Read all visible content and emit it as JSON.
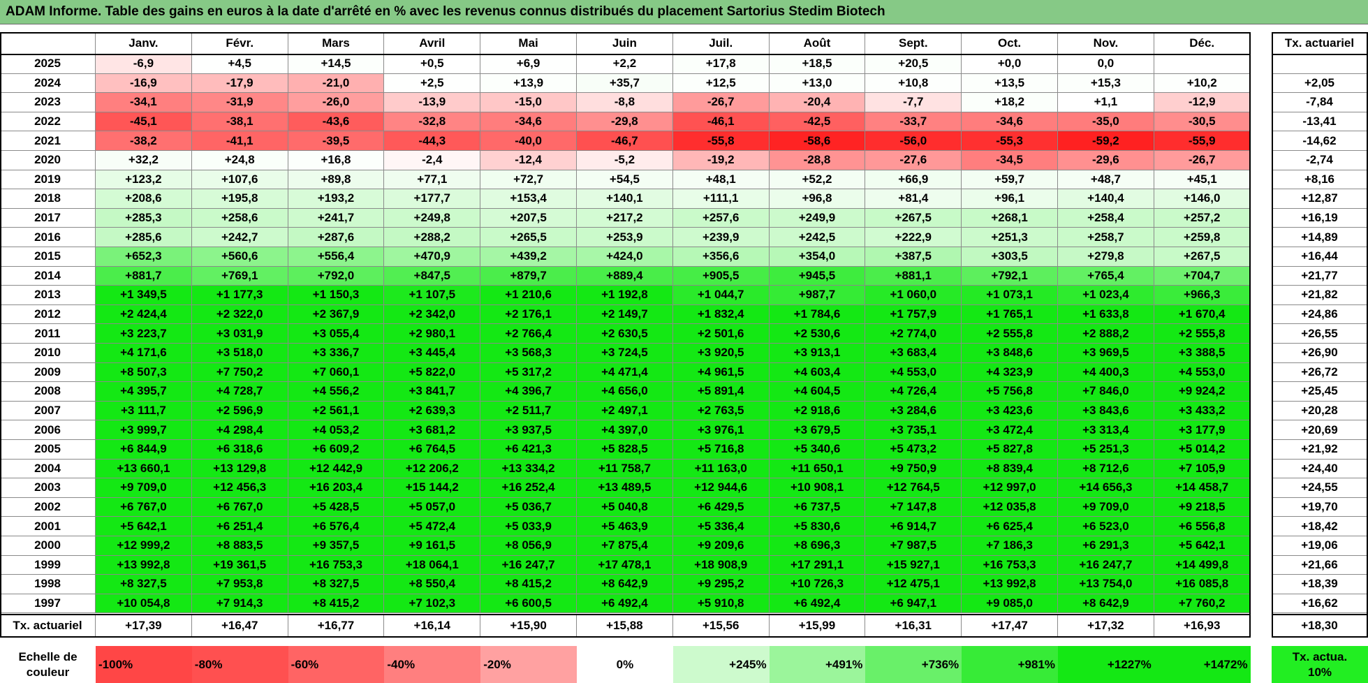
{
  "title": "ADAM Informe. Table des gains en euros à la date d'arrêté en % avec les revenus connus distribués du placement Sartorius Stedim Biotech",
  "header": {
    "months": [
      "Janv.",
      "Févr.",
      "Mars",
      "Avril",
      "Mai",
      "Juin",
      "Juil.",
      "Août",
      "Sept.",
      "Oct.",
      "Nov.",
      "Déc."
    ],
    "rate": "Tx. actuariel"
  },
  "rows": [
    {
      "year": "2025",
      "values": [
        "-6,9",
        "+4,5",
        "+14,5",
        "+0,5",
        "+6,9",
        "+2,2",
        "+17,8",
        "+18,5",
        "+20,5",
        "+0,0",
        "0,0",
        null
      ],
      "rate": null
    },
    {
      "year": "2024",
      "values": [
        "-16,9",
        "-17,9",
        "-21,0",
        "+2,5",
        "+13,9",
        "+35,7",
        "+12,5",
        "+13,0",
        "+10,8",
        "+13,5",
        "+15,3",
        "+10,2"
      ],
      "rate": "+2,05"
    },
    {
      "year": "2023",
      "values": [
        "-34,1",
        "-31,9",
        "-26,0",
        "-13,9",
        "-15,0",
        "-8,8",
        "-26,7",
        "-20,4",
        "-7,7",
        "+18,2",
        "+1,1",
        "-12,9"
      ],
      "rate": "-7,84"
    },
    {
      "year": "2022",
      "values": [
        "-45,1",
        "-38,1",
        "-43,6",
        "-32,8",
        "-34,6",
        "-29,8",
        "-46,1",
        "-42,5",
        "-33,7",
        "-34,6",
        "-35,0",
        "-30,5"
      ],
      "rate": "-13,41"
    },
    {
      "year": "2021",
      "values": [
        "-38,2",
        "-41,1",
        "-39,5",
        "-44,3",
        "-40,0",
        "-46,7",
        "-55,8",
        "-58,6",
        "-56,0",
        "-55,3",
        "-59,2",
        "-55,9"
      ],
      "rate": "-14,62"
    },
    {
      "year": "2020",
      "values": [
        "+32,2",
        "+24,8",
        "+16,8",
        "-2,4",
        "-12,4",
        "-5,2",
        "-19,2",
        "-28,8",
        "-27,6",
        "-34,5",
        "-29,6",
        "-26,7"
      ],
      "rate": "-2,74"
    },
    {
      "year": "2019",
      "values": [
        "+123,2",
        "+107,6",
        "+89,8",
        "+77,1",
        "+72,7",
        "+54,5",
        "+48,1",
        "+52,2",
        "+66,9",
        "+59,7",
        "+48,7",
        "+45,1"
      ],
      "rate": "+8,16"
    },
    {
      "year": "2018",
      "values": [
        "+208,6",
        "+195,8",
        "+193,2",
        "+177,7",
        "+153,4",
        "+140,1",
        "+111,1",
        "+96,8",
        "+81,4",
        "+96,1",
        "+140,4",
        "+146,0"
      ],
      "rate": "+12,87"
    },
    {
      "year": "2017",
      "values": [
        "+285,3",
        "+258,6",
        "+241,7",
        "+249,8",
        "+207,5",
        "+217,2",
        "+257,6",
        "+249,9",
        "+267,5",
        "+268,1",
        "+258,4",
        "+257,2"
      ],
      "rate": "+16,19"
    },
    {
      "year": "2016",
      "values": [
        "+285,6",
        "+242,7",
        "+287,6",
        "+288,2",
        "+265,5",
        "+253,9",
        "+239,9",
        "+242,5",
        "+222,9",
        "+251,3",
        "+258,7",
        "+259,8"
      ],
      "rate": "+14,89"
    },
    {
      "year": "2015",
      "values": [
        "+652,3",
        "+560,6",
        "+556,4",
        "+470,9",
        "+439,2",
        "+424,0",
        "+356,6",
        "+354,0",
        "+387,5",
        "+303,5",
        "+279,8",
        "+267,5"
      ],
      "rate": "+16,44"
    },
    {
      "year": "2014",
      "values": [
        "+881,7",
        "+769,1",
        "+792,0",
        "+847,5",
        "+879,7",
        "+889,4",
        "+905,5",
        "+945,5",
        "+881,1",
        "+792,1",
        "+765,4",
        "+704,7"
      ],
      "rate": "+21,77"
    },
    {
      "year": "2013",
      "values": [
        "+1 349,5",
        "+1 177,3",
        "+1 150,3",
        "+1 107,5",
        "+1 210,6",
        "+1 192,8",
        "+1 044,7",
        "+987,7",
        "+1 060,0",
        "+1 073,1",
        "+1 023,4",
        "+966,3"
      ],
      "rate": "+21,82"
    },
    {
      "year": "2012",
      "values": [
        "+2 424,4",
        "+2 322,0",
        "+2 367,9",
        "+2 342,0",
        "+2 176,1",
        "+2 149,7",
        "+1 832,4",
        "+1 784,6",
        "+1 757,9",
        "+1 765,1",
        "+1 633,8",
        "+1 670,4"
      ],
      "rate": "+24,86"
    },
    {
      "year": "2011",
      "values": [
        "+3 223,7",
        "+3 031,9",
        "+3 055,4",
        "+2 980,1",
        "+2 766,4",
        "+2 630,5",
        "+2 501,6",
        "+2 530,6",
        "+2 774,0",
        "+2 555,8",
        "+2 888,2",
        "+2 555,8"
      ],
      "rate": "+26,55"
    },
    {
      "year": "2010",
      "values": [
        "+4 171,6",
        "+3 518,0",
        "+3 336,7",
        "+3 445,4",
        "+3 568,3",
        "+3 724,5",
        "+3 920,5",
        "+3 913,1",
        "+3 683,4",
        "+3 848,6",
        "+3 969,5",
        "+3 388,5"
      ],
      "rate": "+26,90"
    },
    {
      "year": "2009",
      "values": [
        "+8 507,3",
        "+7 750,2",
        "+7 060,1",
        "+5 822,0",
        "+5 317,2",
        "+4 471,4",
        "+4 961,5",
        "+4 603,4",
        "+4 553,0",
        "+4 323,9",
        "+4 400,3",
        "+4 553,0"
      ],
      "rate": "+26,72"
    },
    {
      "year": "2008",
      "values": [
        "+4 395,7",
        "+4 728,7",
        "+4 556,2",
        "+3 841,7",
        "+4 396,7",
        "+4 656,0",
        "+5 891,4",
        "+4 604,5",
        "+4 726,4",
        "+5 756,8",
        "+7 846,0",
        "+9 924,2"
      ],
      "rate": "+25,45"
    },
    {
      "year": "2007",
      "values": [
        "+3 111,7",
        "+2 596,9",
        "+2 561,1",
        "+2 639,3",
        "+2 511,7",
        "+2 497,1",
        "+2 763,5",
        "+2 918,6",
        "+3 284,6",
        "+3 423,6",
        "+3 843,6",
        "+3 433,2"
      ],
      "rate": "+20,28"
    },
    {
      "year": "2006",
      "values": [
        "+3 999,7",
        "+4 298,4",
        "+4 053,2",
        "+3 681,2",
        "+3 937,5",
        "+4 397,0",
        "+3 976,1",
        "+3 679,5",
        "+3 735,1",
        "+3 472,4",
        "+3 313,4",
        "+3 177,9"
      ],
      "rate": "+20,69"
    },
    {
      "year": "2005",
      "values": [
        "+6 844,9",
        "+6 318,6",
        "+6 609,2",
        "+6 764,5",
        "+6 421,3",
        "+5 828,5",
        "+5 716,8",
        "+5 340,6",
        "+5 473,2",
        "+5 827,8",
        "+5 251,3",
        "+5 014,2"
      ],
      "rate": "+21,92"
    },
    {
      "year": "2004",
      "values": [
        "+13 660,1",
        "+13 129,8",
        "+12 442,9",
        "+12 206,2",
        "+13 334,2",
        "+11 758,7",
        "+11 163,0",
        "+11 650,1",
        "+9 750,9",
        "+8 839,4",
        "+8 712,6",
        "+7 105,9"
      ],
      "rate": "+24,40"
    },
    {
      "year": "2003",
      "values": [
        "+9 709,0",
        "+12 456,3",
        "+16 203,4",
        "+15 144,2",
        "+16 252,4",
        "+13 489,5",
        "+12 944,6",
        "+10 908,1",
        "+12 764,5",
        "+12 997,0",
        "+14 656,3",
        "+14 458,7"
      ],
      "rate": "+24,55"
    },
    {
      "year": "2002",
      "values": [
        "+6 767,0",
        "+6 767,0",
        "+5 428,5",
        "+5 057,0",
        "+5 036,7",
        "+5 040,8",
        "+6 429,5",
        "+6 737,5",
        "+7 147,8",
        "+12 035,8",
        "+9 709,0",
        "+9 218,5"
      ],
      "rate": "+19,70"
    },
    {
      "year": "2001",
      "values": [
        "+5 642,1",
        "+6 251,4",
        "+6 576,4",
        "+5 472,4",
        "+5 033,9",
        "+5 463,9",
        "+5 336,4",
        "+5 830,6",
        "+6 914,7",
        "+6 625,4",
        "+6 523,0",
        "+6 556,8"
      ],
      "rate": "+18,42"
    },
    {
      "year": "2000",
      "values": [
        "+12 999,2",
        "+8 883,5",
        "+9 357,5",
        "+9 161,5",
        "+8 056,9",
        "+7 875,4",
        "+9 209,6",
        "+8 696,3",
        "+7 987,5",
        "+7 186,3",
        "+6 291,3",
        "+5 642,1"
      ],
      "rate": "+19,06"
    },
    {
      "year": "1999",
      "values": [
        "+13 992,8",
        "+19 361,5",
        "+16 753,3",
        "+18 064,1",
        "+16 247,7",
        "+17 478,1",
        "+18 908,9",
        "+17 291,1",
        "+15 927,1",
        "+16 753,3",
        "+16 247,7",
        "+14 499,8"
      ],
      "rate": "+21,66"
    },
    {
      "year": "1998",
      "values": [
        "+8 327,5",
        "+7 953,8",
        "+8 327,5",
        "+8 550,4",
        "+8 415,2",
        "+8 642,9",
        "+9 295,2",
        "+10 726,3",
        "+12 475,1",
        "+13 992,8",
        "+13 754,0",
        "+16 085,8"
      ],
      "rate": "+18,39"
    },
    {
      "year": "1997",
      "values": [
        "+10 054,8",
        "+7 914,3",
        "+8 415,2",
        "+7 102,3",
        "+6 600,5",
        "+6 492,4",
        "+5 910,8",
        "+6 492,4",
        "+6 947,1",
        "+9 085,0",
        "+8 642,9",
        "+7 760,2"
      ],
      "rate": "+16,62"
    }
  ],
  "footer": {
    "label": "Tx. actuariel",
    "values": [
      "+17,39",
      "+16,47",
      "+16,77",
      "+16,14",
      "+15,90",
      "+15,88",
      "+15,56",
      "+15,99",
      "+16,31",
      "+17,47",
      "+17,32",
      "+16,93"
    ],
    "rate": "+18,30"
  },
  "legend": {
    "label": "Echelle de couleur",
    "steps": [
      "-100%",
      "-80%",
      "-60%",
      "-40%",
      "-20%",
      "0%",
      "+245%",
      "+491%",
      "+736%",
      "+981%",
      "+1227%",
      "+1472%"
    ],
    "rate_label": "Tx. actua. 10%"
  }
}
